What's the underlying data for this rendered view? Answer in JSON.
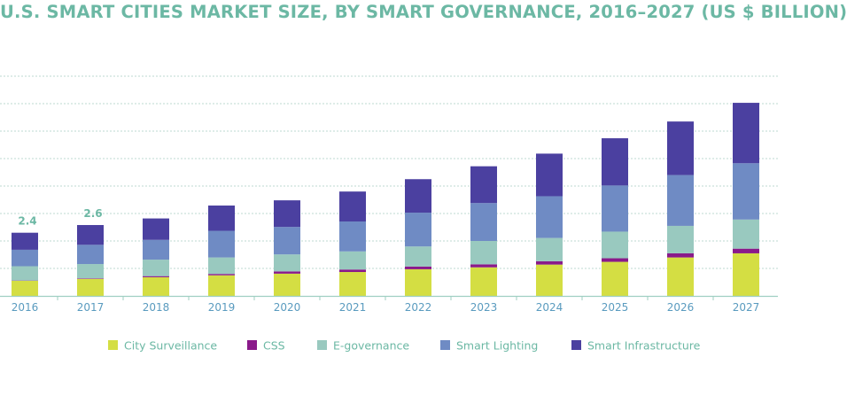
{
  "chart_data": {
    "type": "bar",
    "stacked": true,
    "title": "U.S. SMART CITIES MARKET SIZE, BY SMART GOVERNANCE, 2016–2027 (US $ BILLION)",
    "xlabel": "",
    "ylabel": "",
    "categories": [
      "2016",
      "2017",
      "2018",
      "2019",
      "2020",
      "2021",
      "2022",
      "2023",
      "2024",
      "2025",
      "2026",
      "2027"
    ],
    "series": [
      {
        "name": "City Surveillance",
        "color": "#d4de43",
        "values": [
          0.55,
          0.62,
          0.68,
          0.75,
          0.81,
          0.87,
          0.97,
          1.04,
          1.14,
          1.24,
          1.4,
          1.55
        ]
      },
      {
        "name": "CSS",
        "color": "#8a1a8a",
        "values": [
          0.01,
          0.02,
          0.04,
          0.05,
          0.08,
          0.09,
          0.1,
          0.11,
          0.12,
          0.13,
          0.15,
          0.17
        ]
      },
      {
        "name": "E-governance",
        "color": "#99c9bf",
        "values": [
          0.52,
          0.52,
          0.6,
          0.6,
          0.62,
          0.66,
          0.73,
          0.85,
          0.85,
          0.97,
          1.0,
          1.06
        ]
      },
      {
        "name": "Smart Lighting",
        "color": "#6f8bc4",
        "values": [
          0.6,
          0.7,
          0.72,
          0.97,
          1.0,
          1.09,
          1.23,
          1.38,
          1.52,
          1.68,
          1.85,
          2.05
        ]
      },
      {
        "name": "Smart Infrastructure",
        "color": "#4b40a0",
        "values": [
          0.62,
          0.72,
          0.78,
          0.92,
          0.97,
          1.09,
          1.22,
          1.34,
          1.55,
          1.72,
          1.95,
          2.2
        ]
      }
    ],
    "data_labels": [
      {
        "category": "2016",
        "text": "2.4"
      },
      {
        "category": "2017",
        "text": "2.6"
      }
    ],
    "ylim": [
      0,
      8
    ],
    "grid": true,
    "legend_position": "bottom"
  }
}
